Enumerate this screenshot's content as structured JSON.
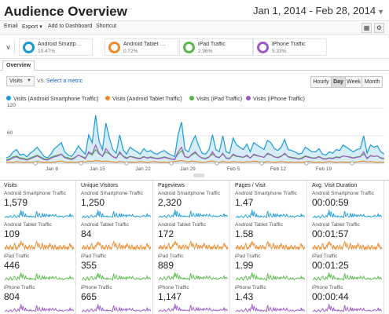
{
  "header": {
    "title": "Audience Overview",
    "date_range": "Jan 1, 2014 - Feb 28, 2014"
  },
  "toolbar": {
    "items": [
      "Email",
      "Export",
      "Add to Dashboard",
      "Shortcut"
    ],
    "export_caret": "▾",
    "icons": [
      "grid-icon",
      "settings-icon"
    ]
  },
  "segments": [
    {
      "name": "Android Smartphone Traffic",
      "display_name": "Android Smartp…",
      "percent": "10.47%",
      "color": "#1a9bd7"
    },
    {
      "name": "Android Tablet Traffic",
      "display_name": "Android Tablet …",
      "percent": "0.72%",
      "color": "#ed8a2c"
    },
    {
      "name": "iPad Traffic",
      "display_name": "iPad Traffic",
      "percent": "2.96%",
      "color": "#59b84a"
    },
    {
      "name": "iPhone Traffic",
      "display_name": "iPhone Traffic",
      "percent": "5.33%",
      "color": "#9b59c9"
    }
  ],
  "tabs": [
    "Overview"
  ],
  "controls": {
    "metric": "Visits",
    "vs": "VS.",
    "select_metric": "Select a metric",
    "granularity": [
      "Hourly",
      "Day",
      "Week",
      "Month"
    ],
    "active_granularity": "Day"
  },
  "chart_data": {
    "type": "line",
    "legend": [
      "Visits (Android Smartphone Traffic)",
      "Visits (Android Tablet Traffic)",
      "Visits (iPad Traffic)",
      "Visits (iPhone Traffic)"
    ],
    "x_tick_labels": [
      "Jan 8",
      "Jan 15",
      "Jan 22",
      "Jan 29",
      "Feb 5",
      "Feb 12",
      "Feb 19"
    ],
    "y_tick_labels": [
      "120",
      "60"
    ],
    "ylim": [
      0,
      120
    ],
    "grid": true,
    "series": [
      {
        "name": "Visits (Android Smartphone Traffic)",
        "color": "#1a9bd7",
        "values": [
          12,
          15,
          25,
          30,
          18,
          20,
          14,
          22,
          28,
          35,
          25,
          15,
          12,
          20,
          32,
          38,
          45,
          25,
          18,
          15,
          25,
          38,
          28,
          20,
          62,
          45,
          105,
          48,
          30,
          88,
          55,
          30,
          22,
          62,
          30,
          20,
          35,
          30,
          25,
          20,
          32,
          25,
          28,
          22,
          20,
          25,
          28,
          22,
          18,
          15,
          62,
          90,
          30,
          25,
          45,
          60,
          38,
          22,
          20,
          30,
          62,
          30,
          25,
          60,
          25,
          22,
          55,
          40,
          35,
          30,
          42,
          25,
          45,
          40,
          35,
          30,
          50,
          45,
          32,
          28,
          35,
          52,
          30,
          28,
          25,
          20,
          22,
          35,
          30,
          25,
          25,
          32,
          20,
          18,
          25,
          22,
          30,
          28,
          40,
          35,
          30,
          25,
          30,
          32,
          60,
          22,
          40,
          35,
          38,
          25,
          20
        ]
      },
      {
        "name": "Visits (Android Tablet Traffic)",
        "color": "#ed8a2c",
        "values": [
          2,
          3,
          2,
          4,
          3,
          2,
          3,
          2,
          3,
          4,
          3,
          2,
          3,
          2,
          3,
          4,
          5,
          3,
          2,
          3,
          2,
          3,
          4,
          3,
          5,
          4,
          6,
          5,
          4,
          5,
          4,
          3,
          2,
          4,
          3,
          2,
          3,
          2,
          3,
          4,
          3,
          2,
          3,
          4,
          3,
          2,
          3,
          2,
          3,
          4,
          5,
          6,
          4,
          3,
          5,
          4,
          3,
          2,
          3,
          4,
          5,
          3,
          2,
          4,
          3,
          2,
          4,
          3,
          3,
          2,
          4,
          3,
          5,
          4,
          3,
          2,
          4,
          3,
          2,
          3,
          4,
          3,
          2,
          3,
          2,
          3,
          2,
          3,
          4,
          3,
          2,
          3,
          2,
          3,
          4,
          3,
          2,
          3,
          3,
          2,
          3,
          2,
          3,
          4,
          5,
          3,
          4,
          3,
          2,
          3,
          2
        ]
      },
      {
        "name": "Visits (iPad Traffic)",
        "color": "#59b84a",
        "values": [
          8,
          10,
          14,
          16,
          12,
          11,
          9,
          12,
          15,
          18,
          14,
          10,
          9,
          13,
          16,
          18,
          20,
          14,
          12,
          10,
          13,
          18,
          15,
          12,
          22,
          18,
          30,
          20,
          16,
          25,
          20,
          15,
          12,
          22,
          16,
          12,
          15,
          14,
          12,
          11,
          15,
          12,
          14,
          12,
          11,
          12,
          14,
          12,
          10,
          9,
          20,
          28,
          15,
          13,
          18,
          22,
          16,
          12,
          11,
          14,
          20,
          15,
          13,
          20,
          12,
          11,
          18,
          15,
          14,
          13,
          16,
          12,
          18,
          16,
          15,
          13,
          20,
          18,
          14,
          13,
          16,
          20,
          15,
          13,
          12,
          10,
          12,
          16,
          14,
          12,
          12,
          15,
          11,
          10,
          12,
          11,
          14,
          13,
          16,
          15,
          14,
          12,
          14,
          15,
          20,
          12,
          16,
          15,
          16,
          12,
          11
        ]
      },
      {
        "name": "Visits (iPhone Traffic)",
        "color": "#9b59c9",
        "values": [
          6,
          8,
          12,
          14,
          10,
          9,
          7,
          10,
          13,
          16,
          12,
          8,
          7,
          11,
          14,
          16,
          20,
          12,
          10,
          8,
          12,
          18,
          14,
          10,
          25,
          20,
          40,
          22,
          15,
          32,
          22,
          14,
          11,
          25,
          15,
          10,
          15,
          13,
          11,
          10,
          14,
          11,
          13,
          11,
          10,
          11,
          13,
          11,
          9,
          8,
          25,
          35,
          14,
          12,
          20,
          25,
          16,
          11,
          10,
          13,
          25,
          14,
          12,
          22,
          11,
          10,
          20,
          16,
          15,
          13,
          18,
          11,
          20,
          17,
          15,
          13,
          22,
          19,
          14,
          12,
          15,
          22,
          14,
          12,
          11,
          9,
          10,
          15,
          13,
          11,
          11,
          14,
          10,
          9,
          11,
          10,
          13,
          12,
          16,
          15,
          13,
          11,
          13,
          14,
          25,
          10,
          17,
          15,
          16,
          11,
          10
        ]
      }
    ]
  },
  "metrics": {
    "columns": [
      {
        "title": "Visits",
        "rows": [
          {
            "segment": "Android Smartphone Traffic",
            "value": "1,579",
            "color": "#1a9bd7"
          },
          {
            "segment": "Android Tablet Traffic",
            "value": "109",
            "color": "#ed8a2c"
          },
          {
            "segment": "iPad Traffic",
            "value": "446",
            "color": "#59b84a"
          },
          {
            "segment": "iPhone Traffic",
            "value": "804",
            "color": "#9b59c9"
          }
        ]
      },
      {
        "title": "Unique Visitors",
        "rows": [
          {
            "segment": "Android Smartphone Traffic",
            "value": "1,250",
            "color": "#1a9bd7"
          },
          {
            "segment": "Android Tablet Traffic",
            "value": "84",
            "color": "#ed8a2c"
          },
          {
            "segment": "iPad Traffic",
            "value": "355",
            "color": "#59b84a"
          },
          {
            "segment": "iPhone Traffic",
            "value": "665",
            "color": "#9b59c9"
          }
        ]
      },
      {
        "title": "Pageviews",
        "rows": [
          {
            "segment": "Android Smartphone Traffic",
            "value": "2,320",
            "color": "#1a9bd7"
          },
          {
            "segment": "Android Tablet Traffic",
            "value": "172",
            "color": "#ed8a2c"
          },
          {
            "segment": "iPad Traffic",
            "value": "889",
            "color": "#59b84a"
          },
          {
            "segment": "iPhone Traffic",
            "value": "1,147",
            "color": "#9b59c9"
          }
        ]
      },
      {
        "title": "Pages / Visit",
        "rows": [
          {
            "segment": "Android Smartphone Traffic",
            "value": "1.47",
            "color": "#1a9bd7"
          },
          {
            "segment": "Android Tablet Traffic",
            "value": "1.58",
            "color": "#ed8a2c"
          },
          {
            "segment": "iPad Traffic",
            "value": "1.99",
            "color": "#59b84a"
          },
          {
            "segment": "iPhone Traffic",
            "value": "1.43",
            "color": "#9b59c9"
          }
        ]
      },
      {
        "title": "Avg. Visit Duration",
        "rows": [
          {
            "segment": "Android Smartphone Traffic",
            "value": "00:00:59",
            "color": "#1a9bd7"
          },
          {
            "segment": "Android Tablet Traffic",
            "value": "00:01:57",
            "color": "#ed8a2c"
          },
          {
            "segment": "iPad Traffic",
            "value": "00:01:25",
            "color": "#59b84a"
          },
          {
            "segment": "iPhone Traffic",
            "value": "00:00:44",
            "color": "#9b59c9"
          }
        ]
      }
    ]
  }
}
